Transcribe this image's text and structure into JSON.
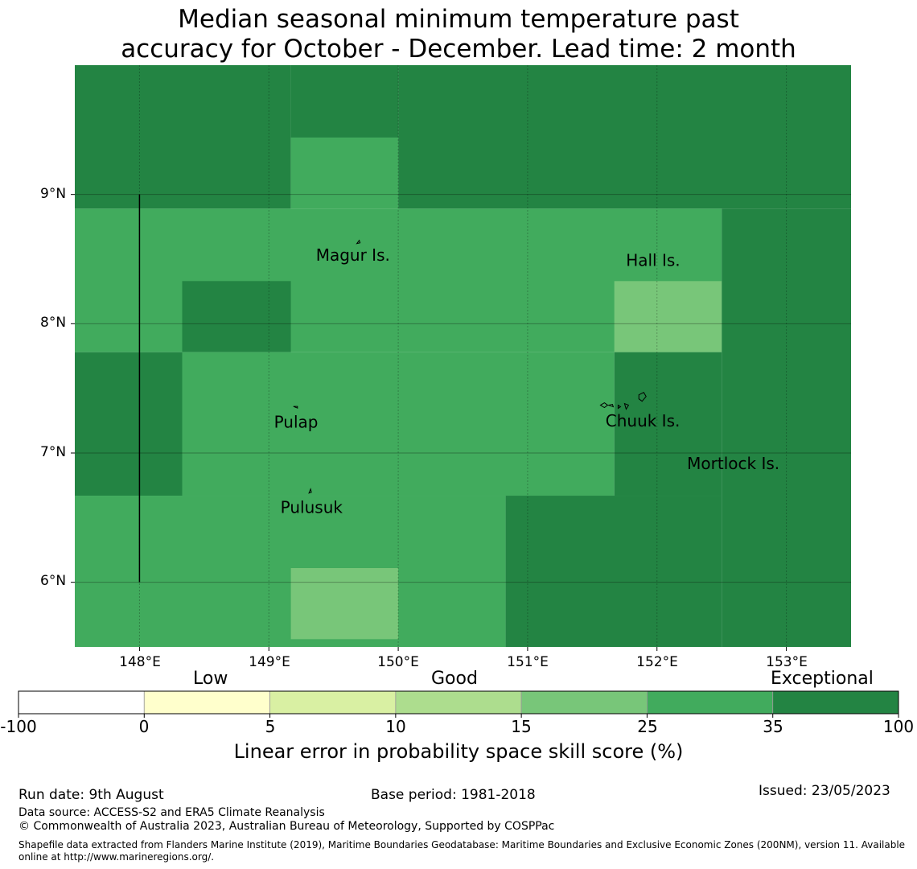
{
  "title_line1": "Median seasonal minimum temperature past",
  "title_line2": "accuracy for October - December. Lead time: 2 month",
  "map": {
    "lat_labels": [
      "9°N",
      "8°N",
      "7°N",
      "6°N"
    ],
    "lon_labels": [
      "148°E",
      "149°E",
      "150°E",
      "151°E",
      "152°E",
      "153°E"
    ],
    "islands": [
      {
        "name": "Magur Is.",
        "lon": 149.65,
        "lat": 8.53
      },
      {
        "name": "Hall Is.",
        "lon": 151.97,
        "lat": 8.49
      },
      {
        "name": "Pulap",
        "lon": 149.21,
        "lat": 7.24
      },
      {
        "name": "Chuuk Is.",
        "lon": 151.89,
        "lat": 7.25
      },
      {
        "name": "Mortlock Is.",
        "lon": 152.59,
        "lat": 6.92
      },
      {
        "name": "Pulusuk",
        "lon": 149.33,
        "lat": 6.58
      }
    ],
    "colors": {
      "exceptional": "#238443",
      "good_high": "#41ab5d",
      "good_mid": "#78c679",
      "good_low": "#addd8e",
      "low_high": "#d9f0a3",
      "low_low": "#ffffcc",
      "none": "#ffffff"
    },
    "cells": [
      {
        "lon": [
          147.5,
          149.17
        ],
        "lat": [
          8.89,
          10.0
        ],
        "color": "exceptional"
      },
      {
        "lon": [
          149.17,
          150.0
        ],
        "lat": [
          9.44,
          10.0
        ],
        "color": "exceptional"
      },
      {
        "lon": [
          150.0,
          153.5
        ],
        "lat": [
          8.89,
          10.0
        ],
        "color": "exceptional"
      },
      {
        "lon": [
          149.17,
          150.0
        ],
        "lat": [
          8.89,
          9.44
        ],
        "color": "good_high"
      },
      {
        "lon": [
          147.5,
          152.5
        ],
        "lat": [
          7.78,
          8.89
        ],
        "color": "good_high"
      },
      {
        "lon": [
          152.5,
          153.5
        ],
        "lat": [
          5.5,
          8.89
        ],
        "color": "exceptional"
      },
      {
        "lon": [
          148.33,
          149.17
        ],
        "lat": [
          7.78,
          8.33
        ],
        "color": "exceptional"
      },
      {
        "lon": [
          151.67,
          152.5
        ],
        "lat": [
          7.78,
          8.33
        ],
        "color": "good_mid"
      },
      {
        "lon": [
          147.5,
          148.33
        ],
        "lat": [
          6.67,
          7.78
        ],
        "color": "exceptional"
      },
      {
        "lon": [
          148.33,
          151.67
        ],
        "lat": [
          6.67,
          7.78
        ],
        "color": "good_high"
      },
      {
        "lon": [
          151.67,
          152.5
        ],
        "lat": [
          6.67,
          7.78
        ],
        "color": "exceptional"
      },
      {
        "lon": [
          147.5,
          150.83
        ],
        "lat": [
          5.5,
          6.67
        ],
        "color": "good_high"
      },
      {
        "lon": [
          149.17,
          150.0
        ],
        "lat": [
          5.56,
          6.11
        ],
        "color": "good_mid"
      },
      {
        "lon": [
          150.83,
          152.5
        ],
        "lat": [
          5.5,
          6.67
        ],
        "color": "exceptional"
      }
    ]
  },
  "colorbar": {
    "categories": [
      "Low",
      "Good",
      "Exceptional"
    ],
    "ticks": [
      "-100",
      "0",
      "5",
      "10",
      "15",
      "25",
      "35",
      "100"
    ],
    "bins": [
      "none",
      "low_low",
      "low_high",
      "good_low",
      "good_mid",
      "good_high",
      "exceptional"
    ],
    "label": "Linear error in probability space skill score (%)"
  },
  "footer": {
    "run_date": "Run date: 9th August",
    "base_period": "Base period: 1981-2018",
    "issued": "Issued: 23/05/2023",
    "data_source": "Data source: ACCESS-S2 and ERA5 Climate Reanalysis",
    "copyright": "© Commonwealth of Australia 2023, Australian Bureau of Meteorology, Supported by COSPPac",
    "shapefile_line1": "Shapefile data extracted from Flanders Marine Institute (2019), Maritime Boundaries Geodatabase: Maritime Boundaries and Exclusive Economic Zones (200NM), version 11. Available",
    "shapefile_line2": "online at http://www.marineregions.org/."
  }
}
